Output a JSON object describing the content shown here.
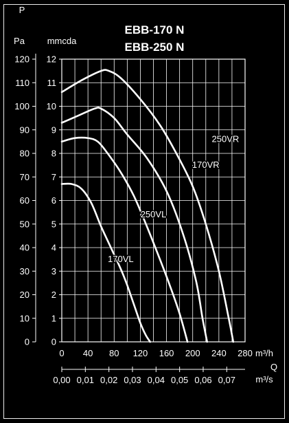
{
  "chart_data": {
    "type": "line",
    "title_lines": [
      "EBB-170 N",
      "EBB-250 N"
    ],
    "y_symbol": "P",
    "y_left_unit": "Pa",
    "y_right_unit": "mmcda",
    "y_left_ticks": [
      "0",
      "10",
      "20",
      "30",
      "40",
      "50",
      "60",
      "70",
      "80",
      "90",
      "100",
      "110",
      "120"
    ],
    "y_right_ticks": [
      "0",
      "1",
      "2",
      "3",
      "4",
      "5",
      "6",
      "7",
      "8",
      "9",
      "10",
      "11",
      "12"
    ],
    "ylim": [
      0,
      12
    ],
    "x_ticks": [
      "0",
      "40",
      "80",
      "120",
      "160",
      "200",
      "240",
      "280"
    ],
    "x_unit": "m³/h",
    "xlim": [
      0,
      280
    ],
    "x2_symbol": "Q",
    "x2_ticks": [
      "0,00",
      "0,01",
      "0,02",
      "0,03",
      "0,04",
      "0,05",
      "0,06",
      "0,07"
    ],
    "x2_unit": "m³/s",
    "grid": true,
    "series": [
      {
        "name": "250VR",
        "label_at": [
          250,
          8.6
        ],
        "x": [
          0,
          30,
          60,
          72,
          90,
          120,
          150,
          175,
          200,
          220,
          240,
          255,
          262
        ],
        "y": [
          10.6,
          11.1,
          11.5,
          11.5,
          11.2,
          10.3,
          9.2,
          8.0,
          6.6,
          5.0,
          3.0,
          1.0,
          0
        ]
      },
      {
        "name": "170VR",
        "label_at": [
          220,
          7.5
        ],
        "x": [
          0,
          25,
          50,
          60,
          80,
          100,
          130,
          160,
          185,
          205,
          215,
          222
        ],
        "y": [
          9.3,
          9.6,
          9.9,
          9.9,
          9.5,
          8.8,
          7.8,
          6.4,
          4.6,
          2.6,
          1.0,
          0
        ]
      },
      {
        "name": "250VL",
        "label_at": [
          140,
          5.4
        ],
        "x": [
          0,
          20,
          40,
          55,
          70,
          90,
          110,
          130,
          150,
          165,
          180,
          192
        ],
        "y": [
          8.5,
          8.65,
          8.65,
          8.5,
          8.0,
          7.2,
          6.2,
          4.9,
          3.5,
          2.4,
          1.2,
          0
        ]
      },
      {
        "name": "170VL",
        "label_at": [
          90,
          3.5
        ],
        "x": [
          0,
          15,
          30,
          45,
          60,
          75,
          90,
          100,
          110,
          120,
          128,
          135
        ],
        "y": [
          6.7,
          6.7,
          6.5,
          5.9,
          4.9,
          4.0,
          3.1,
          2.4,
          1.6,
          0.8,
          0.3,
          0
        ]
      }
    ]
  }
}
